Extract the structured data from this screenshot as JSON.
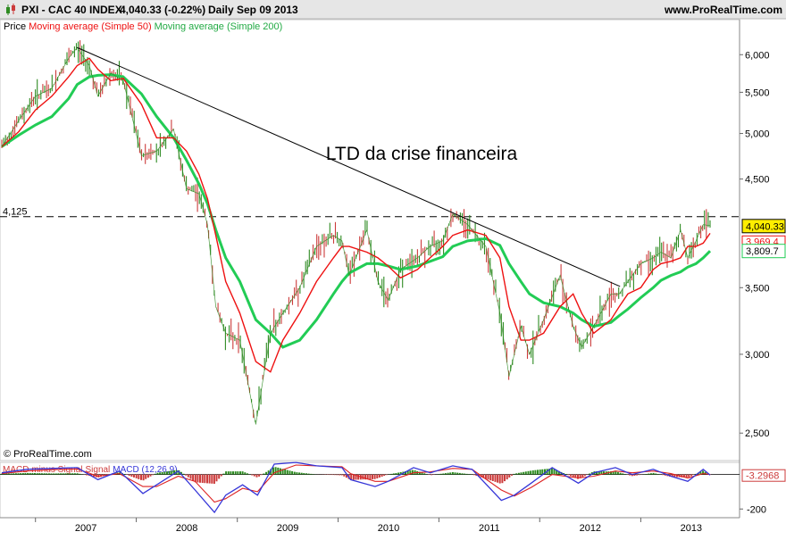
{
  "header": {
    "symbol": "PXI - CAC 40 INDEX",
    "quote": "4,040.33 (-0.22%)",
    "period": "Daily",
    "date": "Sep 09 2013",
    "site": "www.ProRealTime.com"
  },
  "legend": {
    "price": "Price",
    "ma50": "Moving average (Simple 50)",
    "ma200": "Moving average (Simple 200)"
  },
  "copyright": "© ProRealTime.com",
  "annotation": "LTD da crise financeira",
  "macd_legend": {
    "a": "MACD minus Signal",
    "b": "Signal",
    "c": "MACD (12,26,9)"
  },
  "colors": {
    "up": "#2e8b22",
    "down": "#cc3b3b",
    "ma50": "#ee1111",
    "ma200": "#22cc55",
    "macd": "#3535d8",
    "signal": "#dd2222",
    "trendline": "#000000",
    "level": "#000000"
  },
  "chart_data": [
    {
      "type": "line",
      "title": "PXI - CAC 40 INDEX",
      "scale": "log",
      "ylim": [
        2400,
        6400
      ],
      "y_ticks": [
        "6,000",
        "5,500",
        "5,000",
        "4,500",
        "3,500",
        "3,000",
        "2,500"
      ],
      "x_ticks": [
        "2007",
        "2008",
        "2009",
        "2010",
        "2011",
        "2012",
        "2013"
      ],
      "grid": false,
      "level_line": {
        "label": "4,125",
        "value": 4125
      },
      "last_labels": {
        "price": "4,040.33",
        "ma50": "3,969.4",
        "ma200": "3,809.7"
      },
      "trendline": {
        "x": [
          "2007-06-01",
          "2012-10-18"
        ],
        "y": [
          6100,
          3510
        ]
      },
      "x": [
        "2006-09-01",
        "2006-11-01",
        "2007-01-01",
        "2007-03-01",
        "2007-05-01",
        "2007-06-01",
        "2007-07-15",
        "2007-08-15",
        "2007-10-01",
        "2007-11-15",
        "2008-01-20",
        "2008-03-15",
        "2008-05-15",
        "2008-07-01",
        "2008-08-15",
        "2008-09-15",
        "2008-10-15",
        "2008-11-20",
        "2009-01-10",
        "2009-03-09",
        "2009-05-01",
        "2009-06-15",
        "2009-08-15",
        "2009-10-15",
        "2009-12-15",
        "2010-01-15",
        "2010-02-10",
        "2010-04-15",
        "2010-05-25",
        "2010-07-01",
        "2010-08-15",
        "2010-10-15",
        "2010-11-30",
        "2011-01-15",
        "2011-02-20",
        "2011-04-15",
        "2011-06-20",
        "2011-08-10",
        "2011-09-12",
        "2011-10-25",
        "2011-11-25",
        "2012-01-15",
        "2012-03-15",
        "2012-05-01",
        "2012-06-01",
        "2012-07-15",
        "2012-09-15",
        "2012-10-15",
        "2012-11-15",
        "2013-01-01",
        "2013-02-15",
        "2013-03-15",
        "2013-04-20",
        "2013-05-25",
        "2013-06-20",
        "2013-07-20",
        "2013-08-15",
        "2013-09-09"
      ],
      "series": [
        {
          "name": "Price",
          "values": [
            4850,
            5150,
            5450,
            5550,
            5950,
            6100,
            5850,
            5450,
            5750,
            5650,
            4750,
            4800,
            5050,
            4400,
            4350,
            4050,
            3350,
            3150,
            3100,
            2550,
            3150,
            3300,
            3500,
            3850,
            3950,
            3900,
            3600,
            4000,
            3550,
            3400,
            3650,
            3750,
            3850,
            3900,
            4150,
            4050,
            3850,
            3300,
            2850,
            3200,
            3000,
            3250,
            3600,
            3200,
            3050,
            3200,
            3450,
            3450,
            3550,
            3700,
            3750,
            3800,
            3750,
            4000,
            3750,
            3900,
            4050,
            4040
          ]
        },
        {
          "name": "Moving average (Simple 50)",
          "values": [
            4850,
            5020,
            5280,
            5450,
            5700,
            5850,
            5950,
            5800,
            5650,
            5680,
            5350,
            4950,
            4950,
            4800,
            4550,
            4300,
            3950,
            3550,
            3300,
            2950,
            2880,
            3100,
            3300,
            3550,
            3750,
            3850,
            3850,
            3800,
            3750,
            3680,
            3580,
            3650,
            3750,
            3850,
            3950,
            4000,
            3950,
            3750,
            3350,
            3100,
            3100,
            3150,
            3350,
            3450,
            3300,
            3150,
            3250,
            3350,
            3450,
            3500,
            3650,
            3700,
            3720,
            3750,
            3850,
            3850,
            3880,
            3969
          ]
        },
        {
          "name": "Moving average (Simple 200)",
          "values": [
            4850,
            4980,
            5100,
            5200,
            5420,
            5600,
            5700,
            5720,
            5730,
            5700,
            5480,
            5200,
            4950,
            4700,
            4450,
            4250,
            4000,
            3750,
            3550,
            3250,
            3150,
            3050,
            3100,
            3250,
            3450,
            3550,
            3620,
            3700,
            3700,
            3680,
            3650,
            3680,
            3720,
            3760,
            3850,
            3900,
            3920,
            3860,
            3700,
            3550,
            3450,
            3380,
            3350,
            3300,
            3250,
            3200,
            3230,
            3280,
            3330,
            3420,
            3500,
            3560,
            3600,
            3630,
            3670,
            3700,
            3750,
            3810
          ]
        }
      ]
    },
    {
      "type": "line",
      "title": "MACD (12,26,9)",
      "ylim": [
        -240,
        60
      ],
      "y_ticks": [
        "-200"
      ],
      "last_value_label": "-3.2968",
      "x": [
        "2006-09-01",
        "2006-12-01",
        "2007-03-01",
        "2007-06-01",
        "2007-08-15",
        "2007-11-01",
        "2008-01-25",
        "2008-03-15",
        "2008-06-01",
        "2008-08-01",
        "2008-10-10",
        "2008-11-20",
        "2009-01-20",
        "2009-03-15",
        "2009-05-15",
        "2009-08-01",
        "2009-10-15",
        "2010-01-15",
        "2010-02-15",
        "2010-05-15",
        "2010-07-01",
        "2010-10-01",
        "2010-12-01",
        "2011-02-20",
        "2011-05-01",
        "2011-08-15",
        "2011-10-01",
        "2011-12-01",
        "2012-02-15",
        "2012-05-20",
        "2012-07-15",
        "2012-10-01",
        "2012-12-01",
        "2013-02-15",
        "2013-04-20",
        "2013-06-20",
        "2013-08-15",
        "2013-09-09"
      ],
      "series": [
        {
          "name": "MACD",
          "values": [
            10,
            30,
            35,
            40,
            -30,
            20,
            -110,
            -60,
            20,
            -90,
            -220,
            -120,
            -60,
            -120,
            60,
            70,
            50,
            40,
            -30,
            -70,
            -40,
            40,
            10,
            50,
            30,
            -150,
            -120,
            -50,
            40,
            -50,
            10,
            40,
            0,
            30,
            -10,
            -40,
            30,
            -3
          ]
        },
        {
          "name": "Signal",
          "values": [
            5,
            20,
            28,
            32,
            -10,
            5,
            -70,
            -70,
            -10,
            -40,
            -160,
            -140,
            -80,
            -100,
            10,
            55,
            50,
            45,
            5,
            -40,
            -40,
            10,
            15,
            35,
            30,
            -90,
            -125,
            -75,
            0,
            -20,
            -10,
            20,
            10,
            20,
            5,
            -20,
            5,
            0
          ]
        }
      ]
    }
  ]
}
